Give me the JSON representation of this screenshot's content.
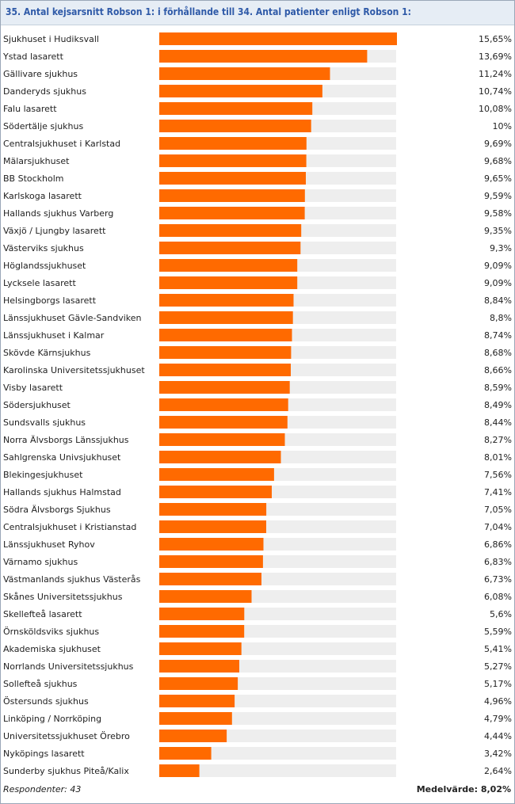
{
  "title": "35. Antal kejsarsnitt Robson 1: i förhållande till 34. Antal patienter enligt Robson 1:",
  "colors": {
    "bar": "#ff6a00",
    "track": "#eeeeee",
    "header_bg": "#e6edf5",
    "title_text": "#2f5aa8"
  },
  "chart_data": {
    "type": "bar",
    "orientation": "horizontal",
    "categories": [
      "Sjukhuset i Hudiksvall",
      "Ystad lasarett",
      "Gällivare sjukhus",
      "Danderyds sjukhus",
      "Falu lasarett",
      "Södertälje sjukhus",
      "Centralsjukhuset i Karlstad",
      "Mälarsjukhuset",
      "BB Stockholm",
      "Karlskoga lasarett",
      "Hallands sjukhus Varberg",
      "Växjö / Ljungby lasarett",
      "Västerviks sjukhus",
      "Höglandssjukhuset",
      "Lycksele lasarett",
      "Helsingborgs lasarett",
      "Länssjukhuset Gävle-Sandviken",
      "Länssjukhuset i Kalmar",
      "Skövde Kärnsjukhus",
      "Karolinska Universitetssjukhuset",
      "Visby lasarett",
      "Södersjukhuset",
      "Sundsvalls sjukhus",
      "Norra Älvsborgs Länssjukhus",
      "Sahlgrenska Univsjukhuset",
      "Blekingesjukhuset",
      "Hallands sjukhus Halmstad",
      "Södra Älvsborgs Sjukhus",
      "Centralsjukhuset i Kristianstad",
      "Länssjukhuset Ryhov",
      "Värnamo sjukhus",
      "Västmanlands sjukhus Västerås",
      "Skånes Universitetssjukhus",
      "Skellefteå lasarett",
      "Örnsköldsviks sjukhus",
      "Akademiska sjukhuset",
      "Norrlands Universitetssjukhus",
      "Sollefteå sjukhus",
      "Östersunds sjukhus",
      "Linköping / Norrköping",
      "Universitetssjukhuset Örebro",
      "Nyköpings lasarett",
      "Sunderby sjukhus Piteå/Kalix"
    ],
    "values": [
      15.65,
      13.69,
      11.24,
      10.74,
      10.08,
      10,
      9.69,
      9.68,
      9.65,
      9.59,
      9.58,
      9.35,
      9.3,
      9.09,
      9.09,
      8.84,
      8.8,
      8.74,
      8.68,
      8.66,
      8.59,
      8.49,
      8.44,
      8.27,
      8.01,
      7.56,
      7.41,
      7.05,
      7.04,
      6.86,
      6.83,
      6.73,
      6.08,
      5.6,
      5.59,
      5.41,
      5.27,
      5.17,
      4.96,
      4.79,
      4.44,
      3.42,
      2.64
    ],
    "value_labels": [
      "15,65%",
      "13,69%",
      "11,24%",
      "10,74%",
      "10,08%",
      "10%",
      "9,69%",
      "9,68%",
      "9,65%",
      "9,59%",
      "9,58%",
      "9,35%",
      "9,3%",
      "9,09%",
      "9,09%",
      "8,84%",
      "8,8%",
      "8,74%",
      "8,68%",
      "8,66%",
      "8,59%",
      "8,49%",
      "8,44%",
      "8,27%",
      "8,01%",
      "7,56%",
      "7,41%",
      "7,05%",
      "7,04%",
      "6,86%",
      "6,83%",
      "6,73%",
      "6,08%",
      "5,6%",
      "5,59%",
      "5,41%",
      "5,27%",
      "5,17%",
      "4,96%",
      "4,79%",
      "4,44%",
      "3,42%",
      "2,64%"
    ],
    "xlim": [
      0,
      15.65
    ],
    "grid": false,
    "legend": "none"
  },
  "footer": {
    "respondents": "Respondenter: 43",
    "mean": "Medelvärde: 8,02%"
  }
}
